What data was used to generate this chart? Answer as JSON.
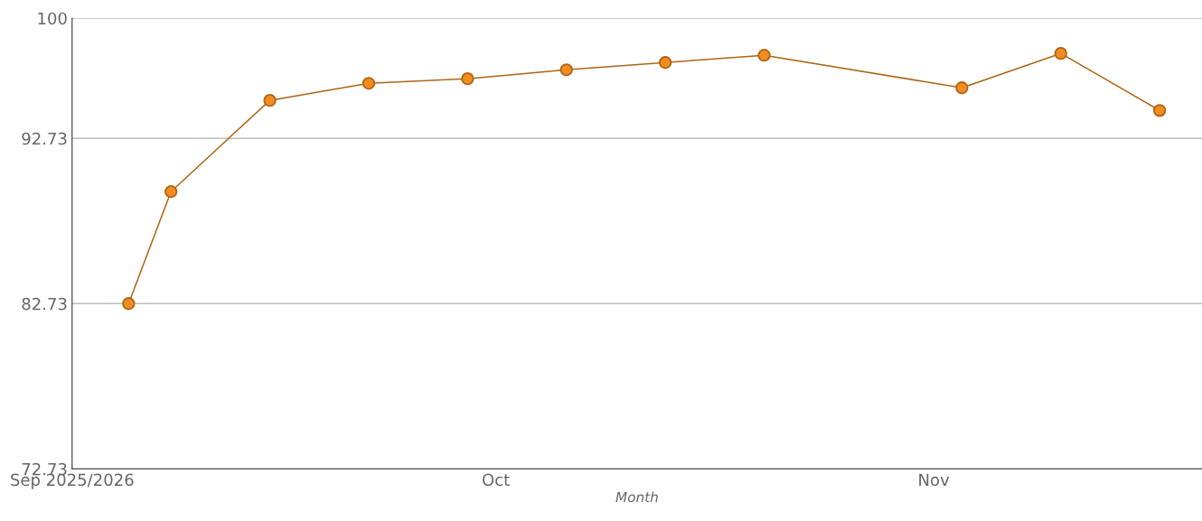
{
  "chart_data": {
    "type": "line",
    "xlabel": "Month",
    "x": [
      "2025-09-05",
      "2025-09-08",
      "2025-09-15",
      "2025-09-22",
      "2025-09-29",
      "2025-10-06",
      "2025-10-13",
      "2025-10-20",
      "2025-11-03",
      "2025-11-10",
      "2025-11-17"
    ],
    "series": [
      {
        "color": "#f28c1e",
        "values": [
          82.73,
          89.51,
          95.03,
          96.06,
          96.34,
          96.88,
          97.32,
          97.76,
          95.79,
          97.87,
          94.42
        ]
      }
    ],
    "xlim": [
      "2025-09-01",
      "2025-11-20"
    ],
    "xticks": [
      {
        "value": "2025-09-01",
        "label": "Sep 2025/2026"
      },
      {
        "value": "2025-10-01",
        "label": "Oct"
      },
      {
        "value": "2025-11-01",
        "label": "Nov"
      }
    ],
    "ylim": [
      72.73,
      100
    ],
    "yticks": [
      72.73,
      82.73,
      92.73,
      100
    ],
    "grid": "y",
    "marker": "circle",
    "line_style": "solid"
  }
}
